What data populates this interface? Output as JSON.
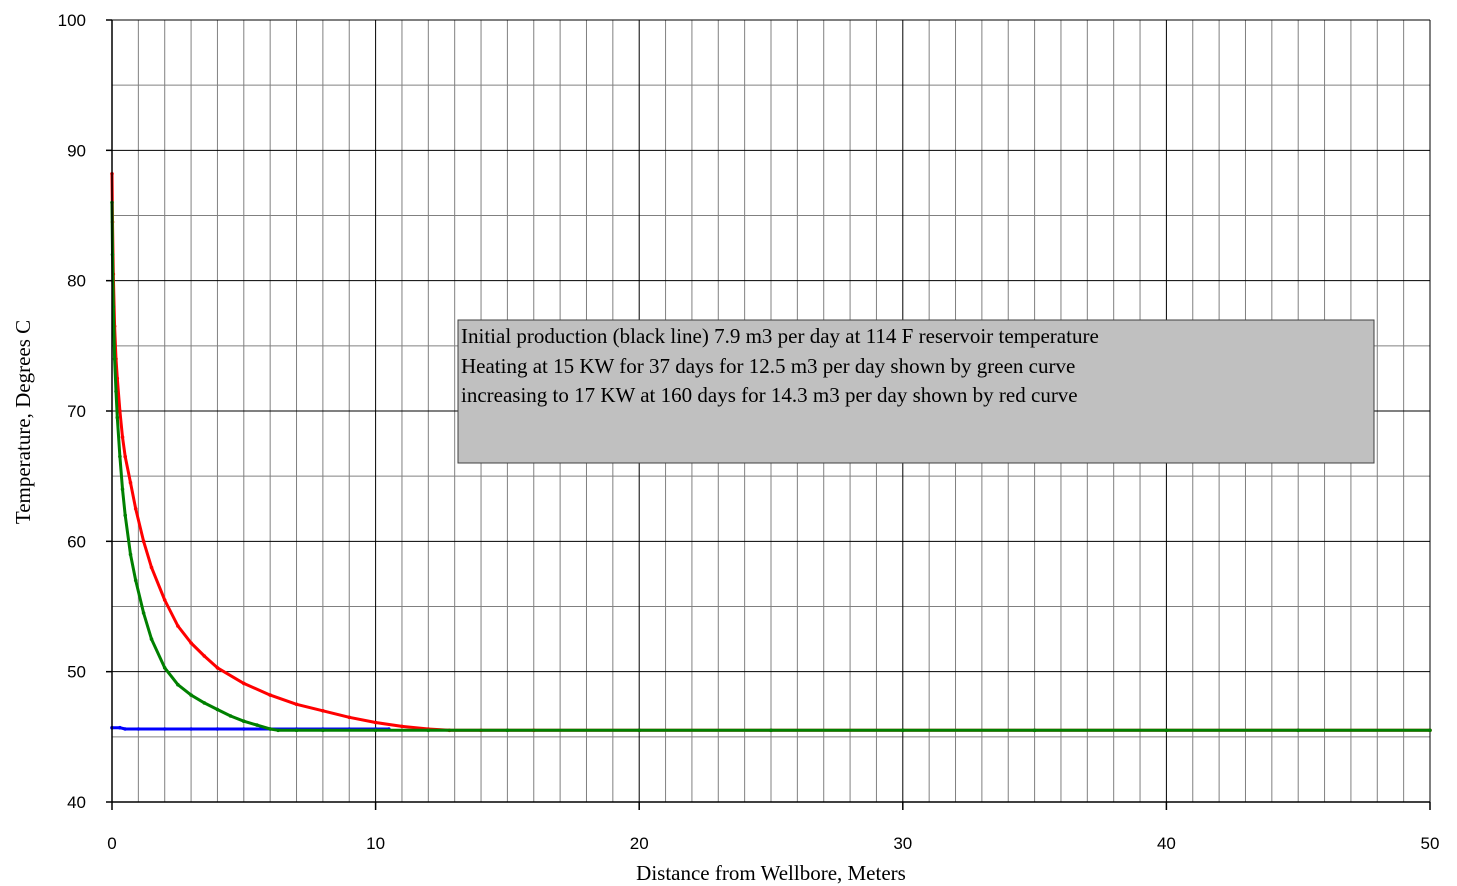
{
  "chart_data": {
    "type": "line",
    "title": "",
    "xlabel": "Distance from Wellbore, Meters",
    "ylabel": "Temperature, Degrees C",
    "xlim": [
      0,
      50
    ],
    "ylim": [
      40,
      100
    ],
    "x_ticks": [
      0,
      10,
      20,
      30,
      40,
      50
    ],
    "y_ticks": [
      40,
      50,
      60,
      70,
      80,
      90,
      100
    ],
    "x_tick_labels": [
      "0",
      "10",
      "20",
      "30",
      "40",
      "50"
    ],
    "y_tick_labels": [
      "40",
      "50",
      "60",
      "70",
      "80",
      "90",
      "100"
    ],
    "x_minor_step": 1,
    "y_minor_step": 5,
    "grid": true,
    "annotation": [
      "Initial production (black line) 7.9 m3 per day at 114 F reservoir temperature",
      "Heating at 15 KW for 37 days for 12.5 m3 per day shown by green curve",
      "increasing to 17 KW at 160 days for 14.3 m3 per day shown by red curve"
    ],
    "series": [
      {
        "color": "#0000ff",
        "marker": "dot",
        "x": [
          0,
          0.3,
          0.5,
          1,
          2,
          3,
          4,
          5,
          6,
          7,
          8,
          9,
          10,
          10.5
        ],
        "y": [
          45.7,
          45.7,
          45.6,
          45.6,
          45.6,
          45.6,
          45.6,
          45.6,
          45.6,
          45.6,
          45.6,
          45.6,
          45.6,
          45.6
        ]
      },
      {
        "color": "#ff0000",
        "marker": "dot",
        "x": [
          0,
          0.02,
          0.05,
          0.1,
          0.15,
          0.2,
          0.3,
          0.4,
          0.5,
          0.7,
          0.9,
          1.2,
          1.5,
          2,
          2.5,
          3,
          3.5,
          4,
          5,
          6,
          7,
          8,
          9,
          10,
          11,
          12,
          12.8,
          14,
          16,
          20,
          25,
          30,
          35,
          40,
          45,
          50
        ],
        "y": [
          88.2,
          84.5,
          80.5,
          76.5,
          74,
          72.5,
          70,
          68,
          66.5,
          64.5,
          62.5,
          60,
          58,
          55.5,
          53.5,
          52.2,
          51.2,
          50.3,
          49.1,
          48.2,
          47.5,
          47,
          46.5,
          46.1,
          45.8,
          45.6,
          45.5,
          45.5,
          45.5,
          45.5,
          45.5,
          45.5,
          45.5,
          45.5,
          45.5,
          45.5
        ]
      },
      {
        "color": "#008000",
        "marker": "dot",
        "x": [
          0,
          0.02,
          0.05,
          0.1,
          0.15,
          0.2,
          0.3,
          0.4,
          0.5,
          0.7,
          0.9,
          1.2,
          1.5,
          2,
          2.5,
          3,
          3.5,
          4,
          4.5,
          5,
          5.5,
          6,
          6.3,
          7,
          8,
          10,
          12,
          15,
          20,
          25,
          30,
          35,
          40,
          45,
          50
        ],
        "y": [
          86,
          82,
          78,
          74,
          71.5,
          69.5,
          66.5,
          64,
          62,
          59,
          57,
          54.5,
          52.5,
          50.3,
          49,
          48.2,
          47.6,
          47.1,
          46.6,
          46.2,
          45.9,
          45.6,
          45.5,
          45.5,
          45.5,
          45.5,
          45.5,
          45.5,
          45.5,
          45.5,
          45.5,
          45.5,
          45.5,
          45.5,
          45.5
        ]
      }
    ],
    "colors": {
      "grid": "#808080",
      "axis": "#000000",
      "annotation_fill": "#c0c0c0",
      "annotation_border": "#404040"
    }
  }
}
